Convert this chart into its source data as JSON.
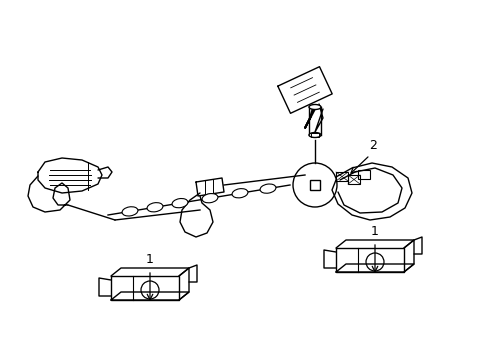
{
  "background_color": "#ffffff",
  "line_color": "#000000",
  "line_width": 1.0,
  "figsize": [
    4.89,
    3.6
  ],
  "dpi": 100,
  "label_fontsize": 9,
  "harness_color": "#333333"
}
